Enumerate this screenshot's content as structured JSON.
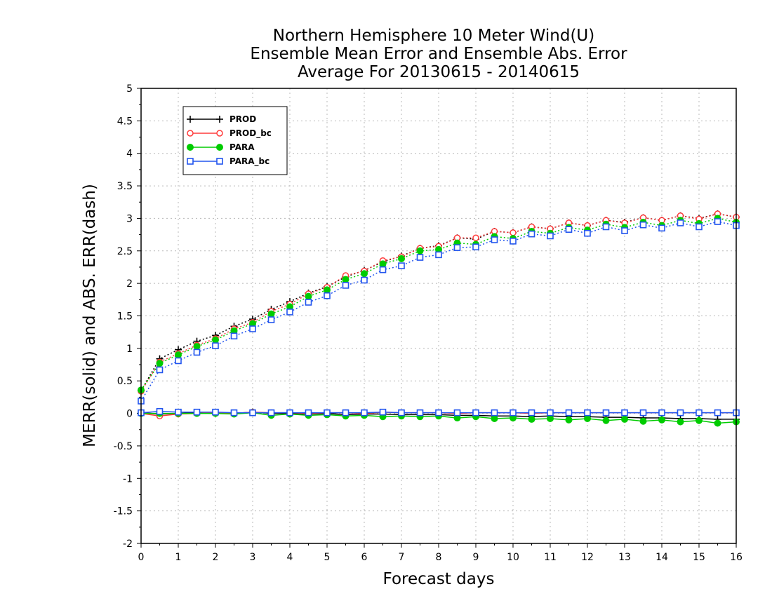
{
  "chart_data": {
    "type": "line",
    "title": [
      "Northern Hemisphere 10 Meter Wind(U)",
      "Ensemble Mean Error and Ensemble Abs. Error",
      "Average For 20130615 - 20140615"
    ],
    "xlabel": "Forecast days",
    "ylabel": "MERR(solid) and ABS. ERR(dash)",
    "xlim": [
      0,
      16
    ],
    "ylim": [
      -2,
      5
    ],
    "xticks": [
      0,
      1,
      2,
      3,
      4,
      5,
      6,
      7,
      8,
      9,
      10,
      11,
      12,
      13,
      14,
      15,
      16
    ],
    "yticks": [
      -2,
      -1.5,
      -1,
      -0.5,
      0,
      0.5,
      1,
      1.5,
      2,
      2.5,
      3,
      3.5,
      4,
      4.5,
      5
    ],
    "ytick_labels": [
      "-2",
      "-1.5",
      "-1",
      "-0.5",
      "0",
      "0.5",
      "1",
      "1.5",
      "2",
      "2.5",
      "3",
      "3.5",
      "4",
      "4.5",
      "5"
    ],
    "grid": true,
    "legend_position": "top-left",
    "x": [
      0,
      0.5,
      1,
      1.5,
      2,
      2.5,
      3,
      3.5,
      4,
      4.5,
      5,
      5.5,
      6,
      6.5,
      7,
      7.5,
      8,
      8.5,
      9,
      9.5,
      10,
      10.5,
      11,
      11.5,
      12,
      12.5,
      13,
      13.5,
      14,
      14.5,
      15,
      15.5,
      16
    ],
    "series": [
      {
        "name": "PROD",
        "color": "#000000",
        "marker": "plus",
        "mean_error": [
          0.01,
          -0.01,
          0.0,
          0.01,
          0.0,
          0.0,
          0.02,
          0.0,
          0.0,
          -0.01,
          0.0,
          -0.02,
          -0.01,
          -0.01,
          -0.02,
          -0.02,
          -0.02,
          -0.03,
          -0.03,
          -0.04,
          -0.04,
          -0.05,
          -0.04,
          -0.05,
          -0.05,
          -0.06,
          -0.06,
          -0.07,
          -0.07,
          -0.08,
          -0.08,
          -0.09,
          -0.09
        ],
        "abs_error": [
          0.35,
          0.84,
          0.98,
          1.11,
          1.2,
          1.34,
          1.45,
          1.6,
          1.72,
          1.85,
          1.95,
          2.1,
          2.2,
          2.33,
          2.42,
          2.54,
          2.58,
          2.7,
          2.68,
          2.8,
          2.78,
          2.87,
          2.84,
          2.93,
          2.89,
          2.97,
          2.94,
          3.01,
          2.97,
          3.04,
          3.0,
          3.07,
          3.02
        ]
      },
      {
        "name": "PROD_bc",
        "color": "#ff3b3b",
        "marker": "open-circle",
        "mean_error": [
          0.0,
          -0.04,
          -0.01,
          0.0,
          0.01,
          0.0,
          0.02,
          0.01,
          0.01,
          0.0,
          0.01,
          0.01,
          0.0,
          0.02,
          0.01,
          0.01,
          0.01,
          0.0,
          0.01,
          0.01,
          0.01,
          0.0,
          0.01,
          0.01,
          0.01,
          0.01,
          0.01,
          0.01,
          0.01,
          0.01,
          0.01,
          0.01,
          0.01
        ],
        "abs_error": [
          0.34,
          0.79,
          0.92,
          1.05,
          1.15,
          1.3,
          1.4,
          1.57,
          1.68,
          1.84,
          1.94,
          2.12,
          2.19,
          2.35,
          2.41,
          2.54,
          2.57,
          2.7,
          2.7,
          2.8,
          2.78,
          2.87,
          2.84,
          2.93,
          2.89,
          2.97,
          2.93,
          3.01,
          2.97,
          3.04,
          2.99,
          3.07,
          3.02
        ]
      },
      {
        "name": "PARA",
        "color": "#00cc00",
        "marker": "filled-circle",
        "mean_error": [
          0.0,
          0.0,
          0.0,
          0.0,
          0.0,
          -0.01,
          0.01,
          -0.03,
          -0.01,
          -0.03,
          -0.02,
          -0.04,
          -0.03,
          -0.05,
          -0.04,
          -0.05,
          -0.04,
          -0.07,
          -0.05,
          -0.08,
          -0.07,
          -0.09,
          -0.08,
          -0.1,
          -0.08,
          -0.11,
          -0.09,
          -0.12,
          -0.1,
          -0.13,
          -0.11,
          -0.15,
          -0.13
        ],
        "abs_error": [
          0.36,
          0.77,
          0.9,
          1.03,
          1.13,
          1.27,
          1.38,
          1.53,
          1.64,
          1.8,
          1.9,
          2.06,
          2.15,
          2.3,
          2.38,
          2.5,
          2.52,
          2.62,
          2.6,
          2.72,
          2.69,
          2.8,
          2.77,
          2.86,
          2.82,
          2.91,
          2.86,
          2.94,
          2.89,
          2.97,
          2.92,
          3.0,
          2.94
        ]
      },
      {
        "name": "PARA_bc",
        "color": "#2255ee",
        "marker": "open-square",
        "mean_error": [
          0.01,
          0.03,
          0.02,
          0.02,
          0.02,
          0.01,
          0.01,
          0.01,
          0.01,
          0.01,
          0.01,
          0.01,
          0.01,
          0.02,
          0.01,
          0.01,
          0.01,
          0.01,
          0.01,
          0.01,
          0.01,
          0.01,
          0.01,
          0.01,
          0.01,
          0.01,
          0.01,
          0.01,
          0.01,
          0.01,
          0.01,
          0.01,
          0.01
        ],
        "abs_error": [
          0.19,
          0.67,
          0.81,
          0.94,
          1.04,
          1.19,
          1.3,
          1.44,
          1.56,
          1.71,
          1.81,
          1.97,
          2.05,
          2.21,
          2.27,
          2.4,
          2.44,
          2.55,
          2.56,
          2.67,
          2.65,
          2.76,
          2.73,
          2.83,
          2.77,
          2.87,
          2.81,
          2.9,
          2.85,
          2.93,
          2.87,
          2.95,
          2.89
        ]
      }
    ]
  }
}
